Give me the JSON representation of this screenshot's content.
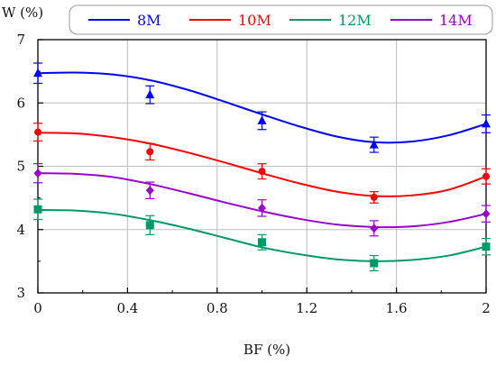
{
  "chart_data": {
    "type": "line",
    "xlabel": "BF (%)",
    "ylabel": "W (%)",
    "xlim": [
      0,
      2
    ],
    "ylim": [
      3,
      7
    ],
    "x_ticks": [
      "0",
      "0.4",
      "0.8",
      "1.2",
      "1.6",
      "2"
    ],
    "x_tick_values": [
      0,
      0.4,
      0.8,
      1.2,
      1.6,
      2
    ],
    "y_ticks": [
      "3",
      "4",
      "5",
      "6",
      "7"
    ],
    "y_tick_values": [
      3,
      4,
      5,
      6,
      7
    ],
    "grid": true,
    "legend_position": "top",
    "series": [
      {
        "name": "8M",
        "color": "#0000ff",
        "marker": "triangle",
        "x": [
          0,
          0.5,
          1,
          1.5,
          2
        ],
        "y": [
          6.47,
          6.13,
          5.72,
          5.34,
          5.67
        ],
        "error": [
          0.16,
          0.14,
          0.14,
          0.12,
          0.14
        ],
        "fit": [
          6.47,
          6.48,
          6.45,
          6.36,
          6.21,
          6.02,
          5.82,
          5.63,
          5.47,
          5.38,
          5.39,
          5.49,
          5.67
        ]
      },
      {
        "name": "10M",
        "color": "#ff0000",
        "marker": "circle",
        "x": [
          0,
          0.5,
          1,
          1.5,
          2
        ],
        "y": [
          5.54,
          5.23,
          4.92,
          4.51,
          4.84
        ],
        "error": [
          0.14,
          0.13,
          0.12,
          0.09,
          0.12
        ],
        "fit": [
          5.53,
          5.52,
          5.46,
          5.36,
          5.22,
          5.06,
          4.89,
          4.73,
          4.6,
          4.53,
          4.54,
          4.63,
          4.84
        ]
      },
      {
        "name": "12M",
        "color": "#009966",
        "marker": "square",
        "x": [
          0,
          0.5,
          1,
          1.5,
          2
        ],
        "y": [
          4.32,
          4.07,
          3.8,
          3.47,
          3.73
        ],
        "error": [
          0.16,
          0.15,
          0.12,
          0.12,
          0.13
        ],
        "fit": [
          4.31,
          4.3,
          4.25,
          4.15,
          4.02,
          3.87,
          3.72,
          3.61,
          3.53,
          3.5,
          3.52,
          3.59,
          3.73
        ]
      },
      {
        "name": "14M",
        "color": "#9900cc",
        "marker": "diamond",
        "x": [
          0,
          0.5,
          1,
          1.5,
          2
        ],
        "y": [
          4.89,
          4.62,
          4.34,
          4.02,
          4.25
        ],
        "error": [
          0.15,
          0.13,
          0.13,
          0.12,
          0.13
        ],
        "fit": [
          4.89,
          4.88,
          4.83,
          4.72,
          4.58,
          4.43,
          4.29,
          4.17,
          4.08,
          4.04,
          4.05,
          4.12,
          4.25
        ]
      }
    ]
  }
}
